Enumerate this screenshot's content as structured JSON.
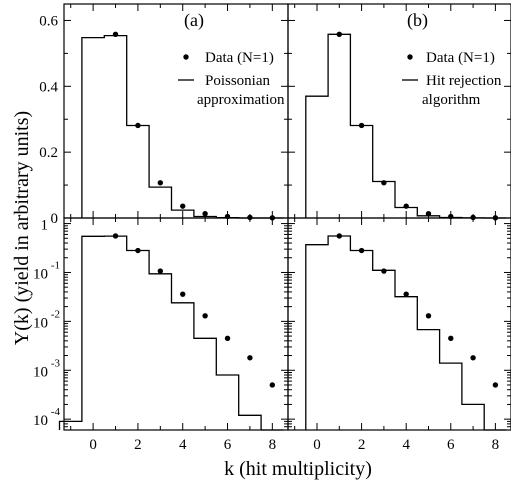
{
  "figure": {
    "ylabel": "Y(k)  (yield in arbitrary units)",
    "xlabel": "k  (hit multiplicity)"
  },
  "chart_data": [
    {
      "id": "a-linear",
      "type": "line",
      "panel_label": "(a)",
      "yscale": "linear",
      "xlim": [
        -1.3,
        8.7
      ],
      "ylim": [
        0,
        0.65
      ],
      "xticks": [
        0,
        2,
        4,
        6,
        8
      ],
      "show_xticklabels": false,
      "yticks": [
        0,
        0.2,
        0.4,
        0.6
      ],
      "yticklabels": [
        "0",
        "0.2",
        "0.4",
        "0.6"
      ],
      "legend": [
        "Data (N=1)",
        "Poissonian approximation"
      ],
      "legend_placement": "right",
      "series": [
        {
          "name": "Data (N=1)",
          "style": "points",
          "x": [
            1,
            2,
            3,
            4,
            5,
            6,
            7,
            8
          ],
          "y": [
            0.558,
            0.281,
            0.107,
            0.036,
            0.013,
            0.0045,
            0.0018,
            0.0005
          ]
        },
        {
          "name": "Poissonian approximation",
          "style": "step",
          "x": [
            0,
            1,
            2,
            3,
            4,
            5,
            6,
            7,
            8
          ],
          "y": [
            0.548,
            0.554,
            0.281,
            0.094,
            0.024,
            0.0045,
            0.0008,
            0.0001,
            0
          ]
        }
      ]
    },
    {
      "id": "b-linear",
      "type": "line",
      "panel_label": "(b)",
      "yscale": "linear",
      "xlim": [
        -1.3,
        8.7
      ],
      "ylim": [
        0,
        0.65
      ],
      "xticks": [
        0,
        2,
        4,
        6,
        8
      ],
      "show_xticklabels": false,
      "yticks": [
        0,
        0.2,
        0.4,
        0.6
      ],
      "yticklabels": [
        "",
        "",
        "",
        ""
      ],
      "legend": [
        "Data (N=1)",
        "Hit rejection algorithm"
      ],
      "legend_placement": "right",
      "series": [
        {
          "name": "Data (N=1)",
          "style": "points",
          "x": [
            1,
            2,
            3,
            4,
            5,
            6,
            7,
            8
          ],
          "y": [
            0.558,
            0.281,
            0.107,
            0.036,
            0.013,
            0.0045,
            0.0018,
            0.0005
          ]
        },
        {
          "name": "Hit rejection algorithm",
          "style": "step",
          "x": [
            0,
            1,
            2,
            3,
            4,
            5,
            6,
            7,
            8
          ],
          "y": [
            0.37,
            0.558,
            0.281,
            0.111,
            0.032,
            0.0068,
            0.0014,
            0.0002,
            0
          ]
        }
      ]
    },
    {
      "id": "a-log",
      "type": "line",
      "yscale": "log",
      "xlim": [
        -1.3,
        8.7
      ],
      "ylim": [
        6e-05,
        1.3
      ],
      "xticks": [
        0,
        2,
        4,
        6,
        8
      ],
      "xticklabels": [
        "0",
        "2",
        "4",
        "6",
        "8"
      ],
      "yticks": [
        1,
        0.1,
        0.01,
        0.001,
        0.0001
      ],
      "yticklabels": [
        [
          "1",
          ""
        ],
        [
          "10",
          "-1"
        ],
        [
          "10",
          "-2"
        ],
        [
          "10",
          "-3"
        ],
        [
          "10",
          "-4"
        ]
      ],
      "series": [
        {
          "name": "Data (N=1)",
          "style": "points",
          "x": [
            1,
            2,
            3,
            4,
            5,
            6,
            7,
            8
          ],
          "y": [
            0.558,
            0.281,
            0.107,
            0.036,
            0.013,
            0.0045,
            0.0018,
            0.0005
          ]
        },
        {
          "name": "Poissonian approximation",
          "style": "step",
          "x": [
            -1,
            0,
            1,
            2,
            3,
            4,
            5,
            6,
            7,
            8
          ],
          "y": [
            9e-05,
            0.548,
            0.554,
            0.281,
            0.094,
            0.024,
            0.0045,
            0.0008,
            0.00012,
            6e-05
          ]
        }
      ]
    },
    {
      "id": "b-log",
      "type": "line",
      "yscale": "log",
      "xlim": [
        -1.3,
        8.7
      ],
      "ylim": [
        6e-05,
        1.3
      ],
      "xticks": [
        0,
        2,
        4,
        6,
        8
      ],
      "xticklabels": [
        "0",
        "2",
        "4",
        "6",
        "8"
      ],
      "yticks": [
        1,
        0.1,
        0.01,
        0.001,
        0.0001
      ],
      "yticklabels": [
        [
          "",
          ""
        ],
        [
          "",
          ""
        ],
        [
          "",
          ""
        ],
        [
          "",
          ""
        ],
        [
          "",
          ""
        ]
      ],
      "series": [
        {
          "name": "Data (N=1)",
          "style": "points",
          "x": [
            1,
            2,
            3,
            4,
            5,
            6,
            7,
            8
          ],
          "y": [
            0.558,
            0.281,
            0.107,
            0.036,
            0.013,
            0.0045,
            0.0018,
            0.0005
          ]
        },
        {
          "name": "Hit rejection algorithm",
          "style": "step",
          "x": [
            0,
            1,
            2,
            3,
            4,
            5,
            6,
            7,
            8
          ],
          "y": [
            0.37,
            0.558,
            0.281,
            0.111,
            0.032,
            0.0068,
            0.0014,
            0.0002,
            6e-05
          ]
        }
      ]
    }
  ]
}
